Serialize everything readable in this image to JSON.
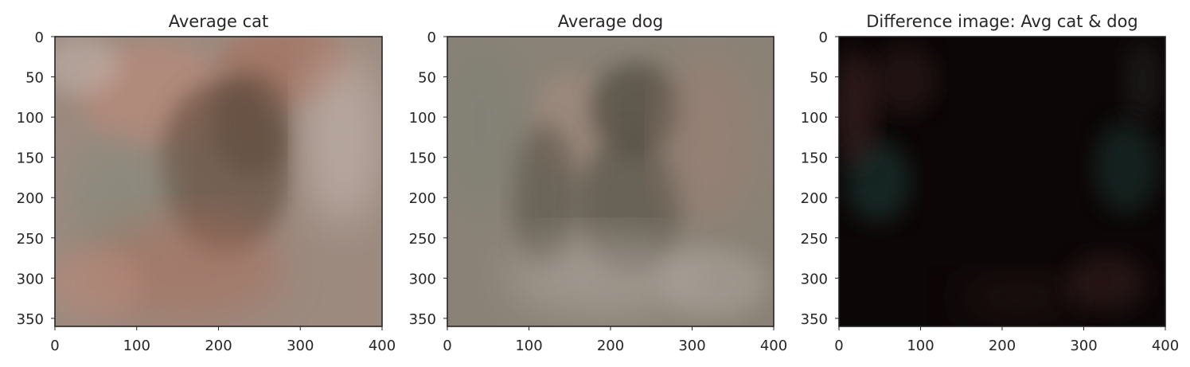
{
  "chart_data": [
    {
      "type": "image",
      "title": "Average cat",
      "xlabel": "",
      "ylabel": "",
      "xlim": [
        0,
        400
      ],
      "ylim": [
        360,
        0
      ],
      "xticks": [
        0,
        100,
        200,
        300,
        400
      ],
      "yticks": [
        0,
        50,
        100,
        150,
        200,
        250,
        300,
        350
      ],
      "grid": false,
      "tones": {
        "base": "#9c8a7f",
        "warm": "#b98a7a",
        "dark": "#5b4638",
        "light": "#c7b9b2",
        "cool": "#7e8a7c",
        "accent": "#a86e5c"
      }
    },
    {
      "type": "image",
      "title": "Average dog",
      "xlabel": "",
      "ylabel": "",
      "xlim": [
        0,
        400
      ],
      "ylim": [
        360,
        0
      ],
      "xticks": [
        0,
        100,
        200,
        300,
        400
      ],
      "yticks": [
        0,
        50,
        100,
        150,
        200,
        250,
        300,
        350
      ],
      "grid": false,
      "tones": {
        "base": "#8a8276",
        "warm": "#a58c80",
        "dark": "#4f4a3d",
        "light": "#b1a9a0",
        "cool": "#7a8174",
        "accent": "#9c7f73"
      }
    },
    {
      "type": "image",
      "title": "Difference image: Avg cat & dog",
      "xlabel": "",
      "ylabel": "",
      "xlim": [
        0,
        400
      ],
      "ylim": [
        360,
        0
      ],
      "xticks": [
        0,
        100,
        200,
        300,
        400
      ],
      "yticks": [
        0,
        50,
        100,
        150,
        200,
        250,
        300,
        350
      ],
      "grid": false,
      "tones": {
        "base": "#0c0606",
        "warm": "#3a2320",
        "dark": "#000000",
        "light": "#2c2a2a",
        "cool": "#1f3a36",
        "accent": "#4a2a2a"
      }
    }
  ]
}
